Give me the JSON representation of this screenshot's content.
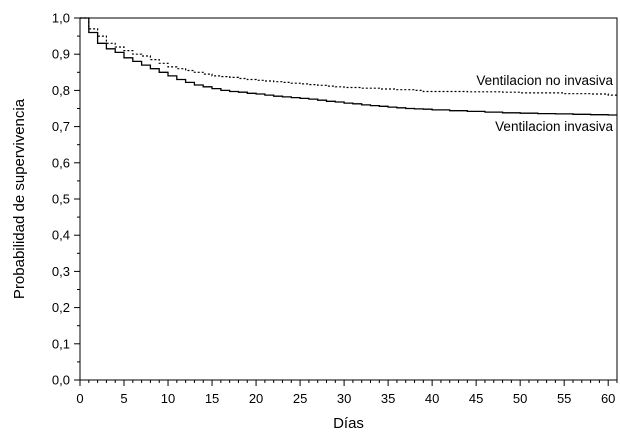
{
  "chart_data": {
    "type": "line",
    "title": "",
    "xlabel": "Días",
    "ylabel": "Probabilidad de supervivencia",
    "xlim": [
      0,
      61
    ],
    "ylim": [
      0,
      1
    ],
    "x_ticks": [
      "0",
      "5",
      "10",
      "15",
      "20",
      "25",
      "30",
      "35",
      "40",
      "45",
      "50",
      "55",
      "60"
    ],
    "y_ticks": [
      "0,0",
      "0,1",
      "0,2",
      "0,3",
      "0,4",
      "0,5",
      "0,6",
      "0,7",
      "0,8",
      "0,9",
      "1,0"
    ],
    "grid": false,
    "step": true,
    "series": [
      {
        "name": "Ventilacion no invasiva",
        "style": "dotted",
        "color": "#000000",
        "x": [
          0,
          1,
          2,
          3,
          4,
          5,
          6,
          7,
          8,
          9,
          10,
          11,
          12,
          13,
          14,
          15,
          16,
          17,
          18,
          19,
          20,
          21,
          22,
          23,
          24,
          25,
          26,
          27,
          28,
          29,
          30,
          32,
          34,
          36,
          38,
          39,
          40,
          44,
          48,
          50,
          55,
          58,
          60,
          61
        ],
        "y": [
          1.0,
          0.97,
          0.95,
          0.93,
          0.92,
          0.91,
          0.9,
          0.895,
          0.885,
          0.875,
          0.865,
          0.86,
          0.855,
          0.85,
          0.845,
          0.84,
          0.838,
          0.836,
          0.833,
          0.83,
          0.828,
          0.826,
          0.824,
          0.822,
          0.82,
          0.818,
          0.816,
          0.814,
          0.812,
          0.81,
          0.808,
          0.806,
          0.804,
          0.802,
          0.8,
          0.797,
          0.797,
          0.796,
          0.795,
          0.793,
          0.791,
          0.79,
          0.787,
          0.787
        ]
      },
      {
        "name": "Ventilacion invasiva",
        "style": "solid",
        "color": "#000000",
        "x": [
          0,
          1,
          2,
          3,
          4,
          5,
          6,
          7,
          8,
          9,
          10,
          11,
          12,
          13,
          14,
          15,
          16,
          17,
          18,
          19,
          20,
          21,
          22,
          23,
          24,
          25,
          26,
          27,
          28,
          29,
          30,
          31,
          32,
          33,
          34,
          35,
          36,
          37,
          38,
          39,
          40,
          42,
          44,
          46,
          48,
          50,
          52,
          54,
          56,
          58,
          60,
          61
        ],
        "y": [
          1.0,
          0.96,
          0.93,
          0.915,
          0.905,
          0.89,
          0.88,
          0.87,
          0.86,
          0.85,
          0.84,
          0.83,
          0.822,
          0.815,
          0.81,
          0.805,
          0.8,
          0.797,
          0.795,
          0.792,
          0.79,
          0.787,
          0.784,
          0.782,
          0.78,
          0.778,
          0.776,
          0.773,
          0.77,
          0.768,
          0.765,
          0.763,
          0.76,
          0.758,
          0.756,
          0.754,
          0.752,
          0.75,
          0.749,
          0.748,
          0.746,
          0.744,
          0.742,
          0.74,
          0.738,
          0.737,
          0.736,
          0.735,
          0.734,
          0.733,
          0.732,
          0.732
        ]
      }
    ]
  }
}
